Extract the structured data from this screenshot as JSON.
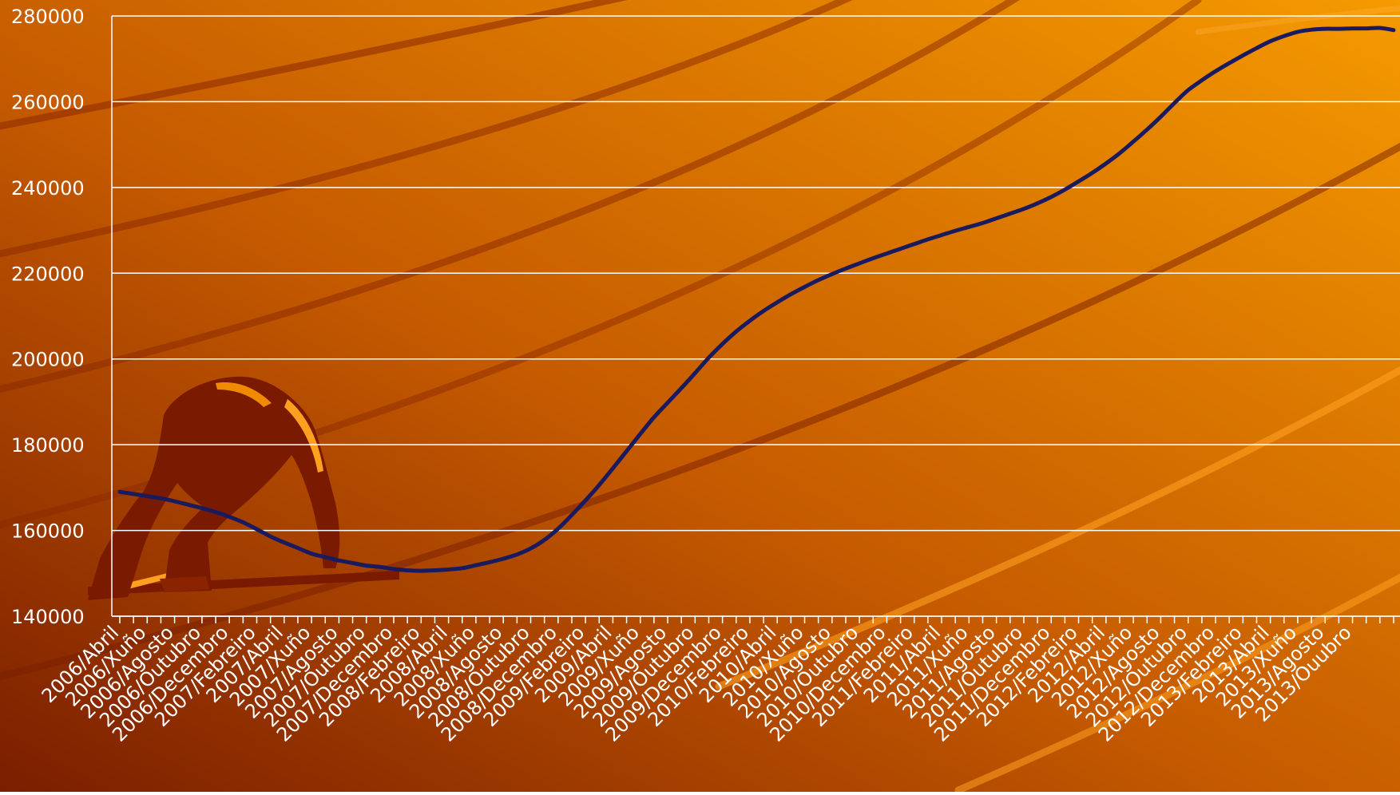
{
  "chart_data": {
    "type": "line",
    "title": "",
    "xlabel": "",
    "ylabel": "",
    "ylim": [
      140000,
      280000
    ],
    "yticks": [
      140000,
      160000,
      180000,
      200000,
      220000,
      240000,
      260000,
      280000
    ],
    "grid": true,
    "legend": "none",
    "colors": {
      "line": "#1a1a5e",
      "grid": "#ffffff",
      "text": "#ffffff",
      "background_dark": "#7a1e00",
      "background_light": "#f59a00"
    },
    "decoration": "sprinter-silhouette",
    "x_labels": [
      "2006/Abril",
      "2006/Xuño",
      "2006/Agosto",
      "2006/Outubro",
      "2006/Decembro",
      "2007/Febreiro",
      "2007/Abril",
      "2007/Xuño",
      "2007/Agosto",
      "2007/Outubro",
      "2007/Decembro",
      "2008/Febreiro",
      "2008/Abril",
      "2008/Xuño",
      "2008/Agosto",
      "2008/Outubro",
      "2008/Decembro",
      "2009/Febreiro",
      "2009/Abril",
      "2009/Xuño",
      "2009/Agosto",
      "2009/Outubro",
      "2009/Decembro",
      "2010/Febreiro",
      "2010/Abril",
      "2010/Xuño",
      "2010/Agosto",
      "2010/Outubro",
      "2010/Decembro",
      "2011/Febreiro",
      "2011/Abril",
      "2011/Xuño",
      "2011/Agosto",
      "2011/Outubro",
      "2011/Decembro",
      "2012/Febreiro",
      "2012/Abril",
      "2012/Xuño",
      "2012/Agosto",
      "2012/Outubro",
      "2012/Decembro",
      "2013/Febreiro",
      "2013/Abril",
      "2013/Xuño",
      "2013/Agosto",
      "2013/Ouubro"
    ],
    "series": [
      {
        "name": "",
        "values": [
          169000,
          168500,
          168000,
          167500,
          166800,
          166000,
          165200,
          164300,
          163200,
          161900,
          160300,
          158600,
          157200,
          155900,
          154600,
          153800,
          153000,
          152400,
          151800,
          151500,
          151000,
          150700,
          150600,
          150700,
          150900,
          151200,
          151900,
          152600,
          153400,
          154400,
          155800,
          157800,
          160400,
          163600,
          167000,
          170600,
          174500,
          178500,
          182500,
          186400,
          189800,
          193200,
          196700,
          200300,
          203500,
          206400,
          208900,
          211200,
          213200,
          215100,
          216800,
          218400,
          219800,
          221100,
          222300,
          223500,
          224600,
          225700,
          226800,
          227900,
          228900,
          229900,
          230800,
          231700,
          232800,
          233900,
          235000,
          236300,
          237800,
          239500,
          241400,
          243400,
          245600,
          248000,
          250700,
          253500,
          256500,
          259700,
          262700,
          265000,
          267100,
          269000,
          270800,
          272500,
          274100,
          275300,
          276300,
          276800,
          277000,
          277000,
          277100,
          277100,
          277200,
          276700
        ]
      }
    ]
  }
}
